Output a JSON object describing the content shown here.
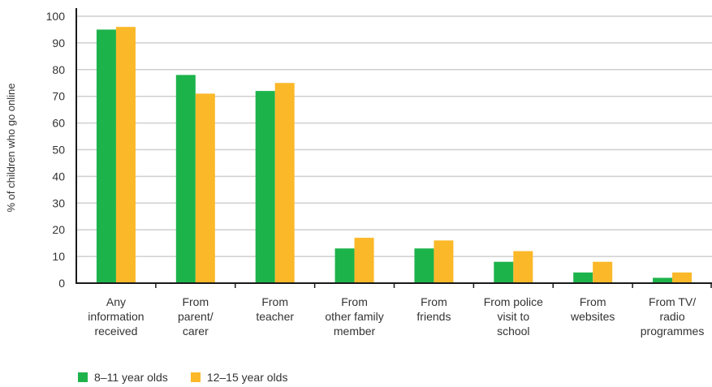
{
  "chart_data": {
    "type": "bar",
    "title": "",
    "xlabel": "",
    "ylabel": "% of children who go online",
    "ylim": [
      0,
      100
    ],
    "yticks": [
      "0",
      "10",
      "20",
      "30",
      "40",
      "50",
      "60",
      "70",
      "80",
      "90",
      "100"
    ],
    "grid": true,
    "legend_position": "bottom-left",
    "categories": [
      [
        "Any",
        "information",
        "received"
      ],
      [
        "From",
        "parent/",
        "carer"
      ],
      [
        "From",
        "teacher"
      ],
      [
        "From",
        "other family",
        "member"
      ],
      [
        "From",
        "friends"
      ],
      [
        "From police",
        "visit to",
        "school"
      ],
      [
        "From",
        "websites"
      ],
      [
        "From TV/",
        "radio",
        "programmes"
      ]
    ],
    "series": [
      {
        "name": "8–11 year olds",
        "color": "#1db34b",
        "values": [
          95,
          78,
          72,
          13,
          13,
          8,
          4,
          2
        ]
      },
      {
        "name": "12–15 year olds",
        "color": "#fbb829",
        "values": [
          96,
          71,
          75,
          17,
          16,
          12,
          8,
          4
        ]
      }
    ]
  }
}
